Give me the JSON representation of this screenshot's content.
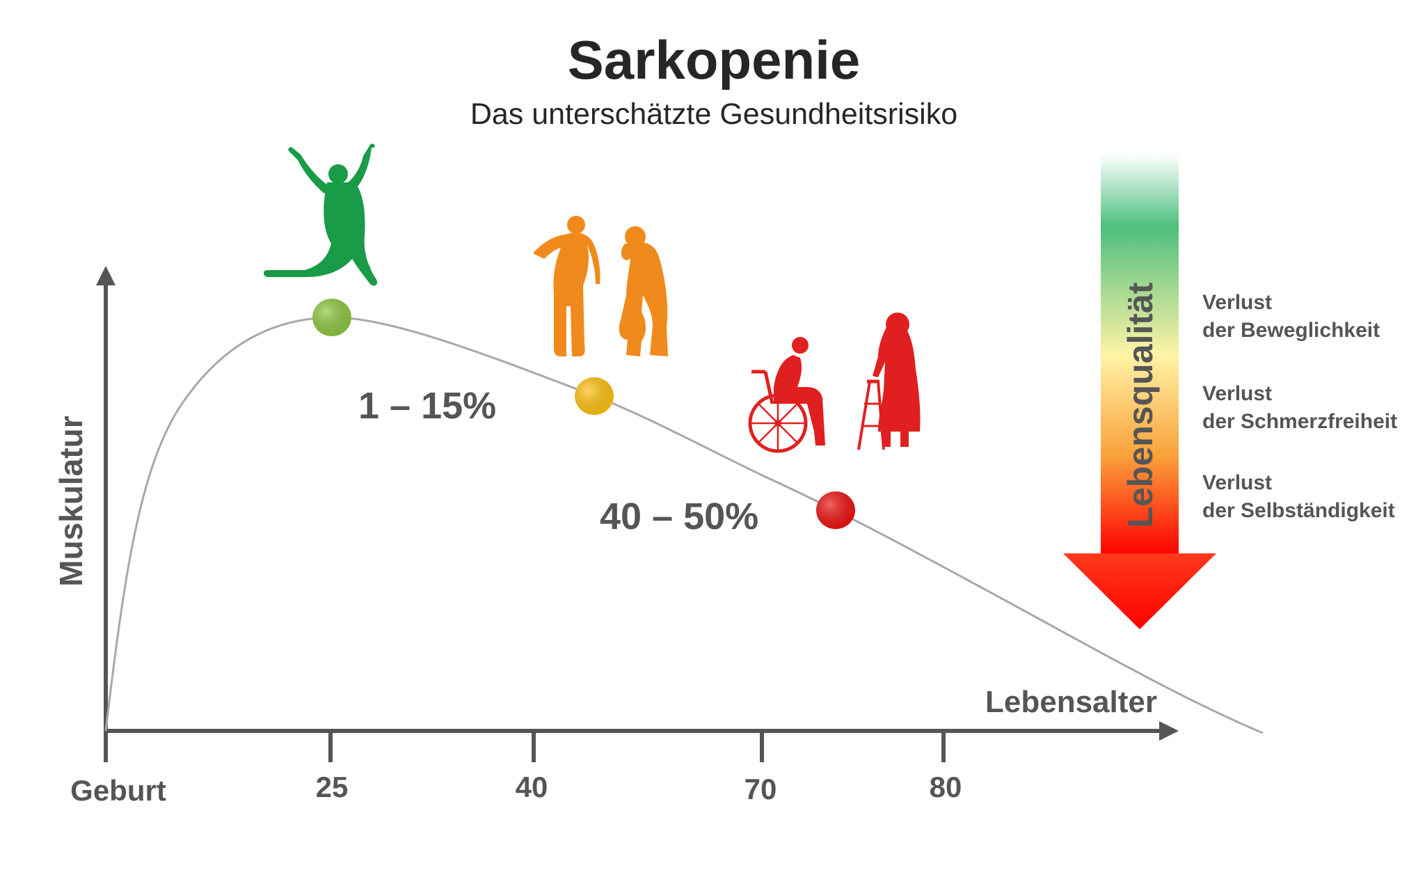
{
  "chart_data": {
    "type": "line",
    "title": "Sarkopenie",
    "subtitle": "Das unterschätzte Gesundheitsrisiko",
    "xlabel": "Lebensalter",
    "ylabel": "Muskulatur",
    "x_ticks": [
      "Geburt",
      "25",
      "40",
      "70",
      "80"
    ],
    "grid": false,
    "markers": [
      {
        "x": 25,
        "color": "#8dc63f"
      },
      {
        "x": 43,
        "color": "#ffc20e"
      },
      {
        "x": 74,
        "color": "#ee1111"
      }
    ],
    "annotations": [
      "1 – 15%",
      "40 – 50%"
    ],
    "quality_arrow": {
      "label": "Lebensqualität",
      "colors": [
        "#ffffff",
        "#4dbf7e",
        "#fff3a6",
        "#f9a23b",
        "#ff0000"
      ]
    },
    "losses": [
      {
        "line1": "Verlust",
        "line2": "der Beweglichkeit"
      },
      {
        "line1": "Verlust",
        "line2": "der Schmerzfreiheit"
      },
      {
        "line1": "Verlust",
        "line2": "der Selbständigkeit"
      }
    ]
  },
  "icons": {
    "jumping": {
      "name": "jumping-person-icon",
      "color": "#1a9b47"
    },
    "back_pain": {
      "name": "back-pain-person-icon",
      "color": "#f08a1c"
    },
    "knee_pain": {
      "name": "knee-pain-person-icon",
      "color": "#f08a1c"
    },
    "wheelchair": {
      "name": "wheelchair-person-icon",
      "color": "#e02020"
    },
    "walker": {
      "name": "walker-person-icon",
      "color": "#e02020"
    }
  }
}
